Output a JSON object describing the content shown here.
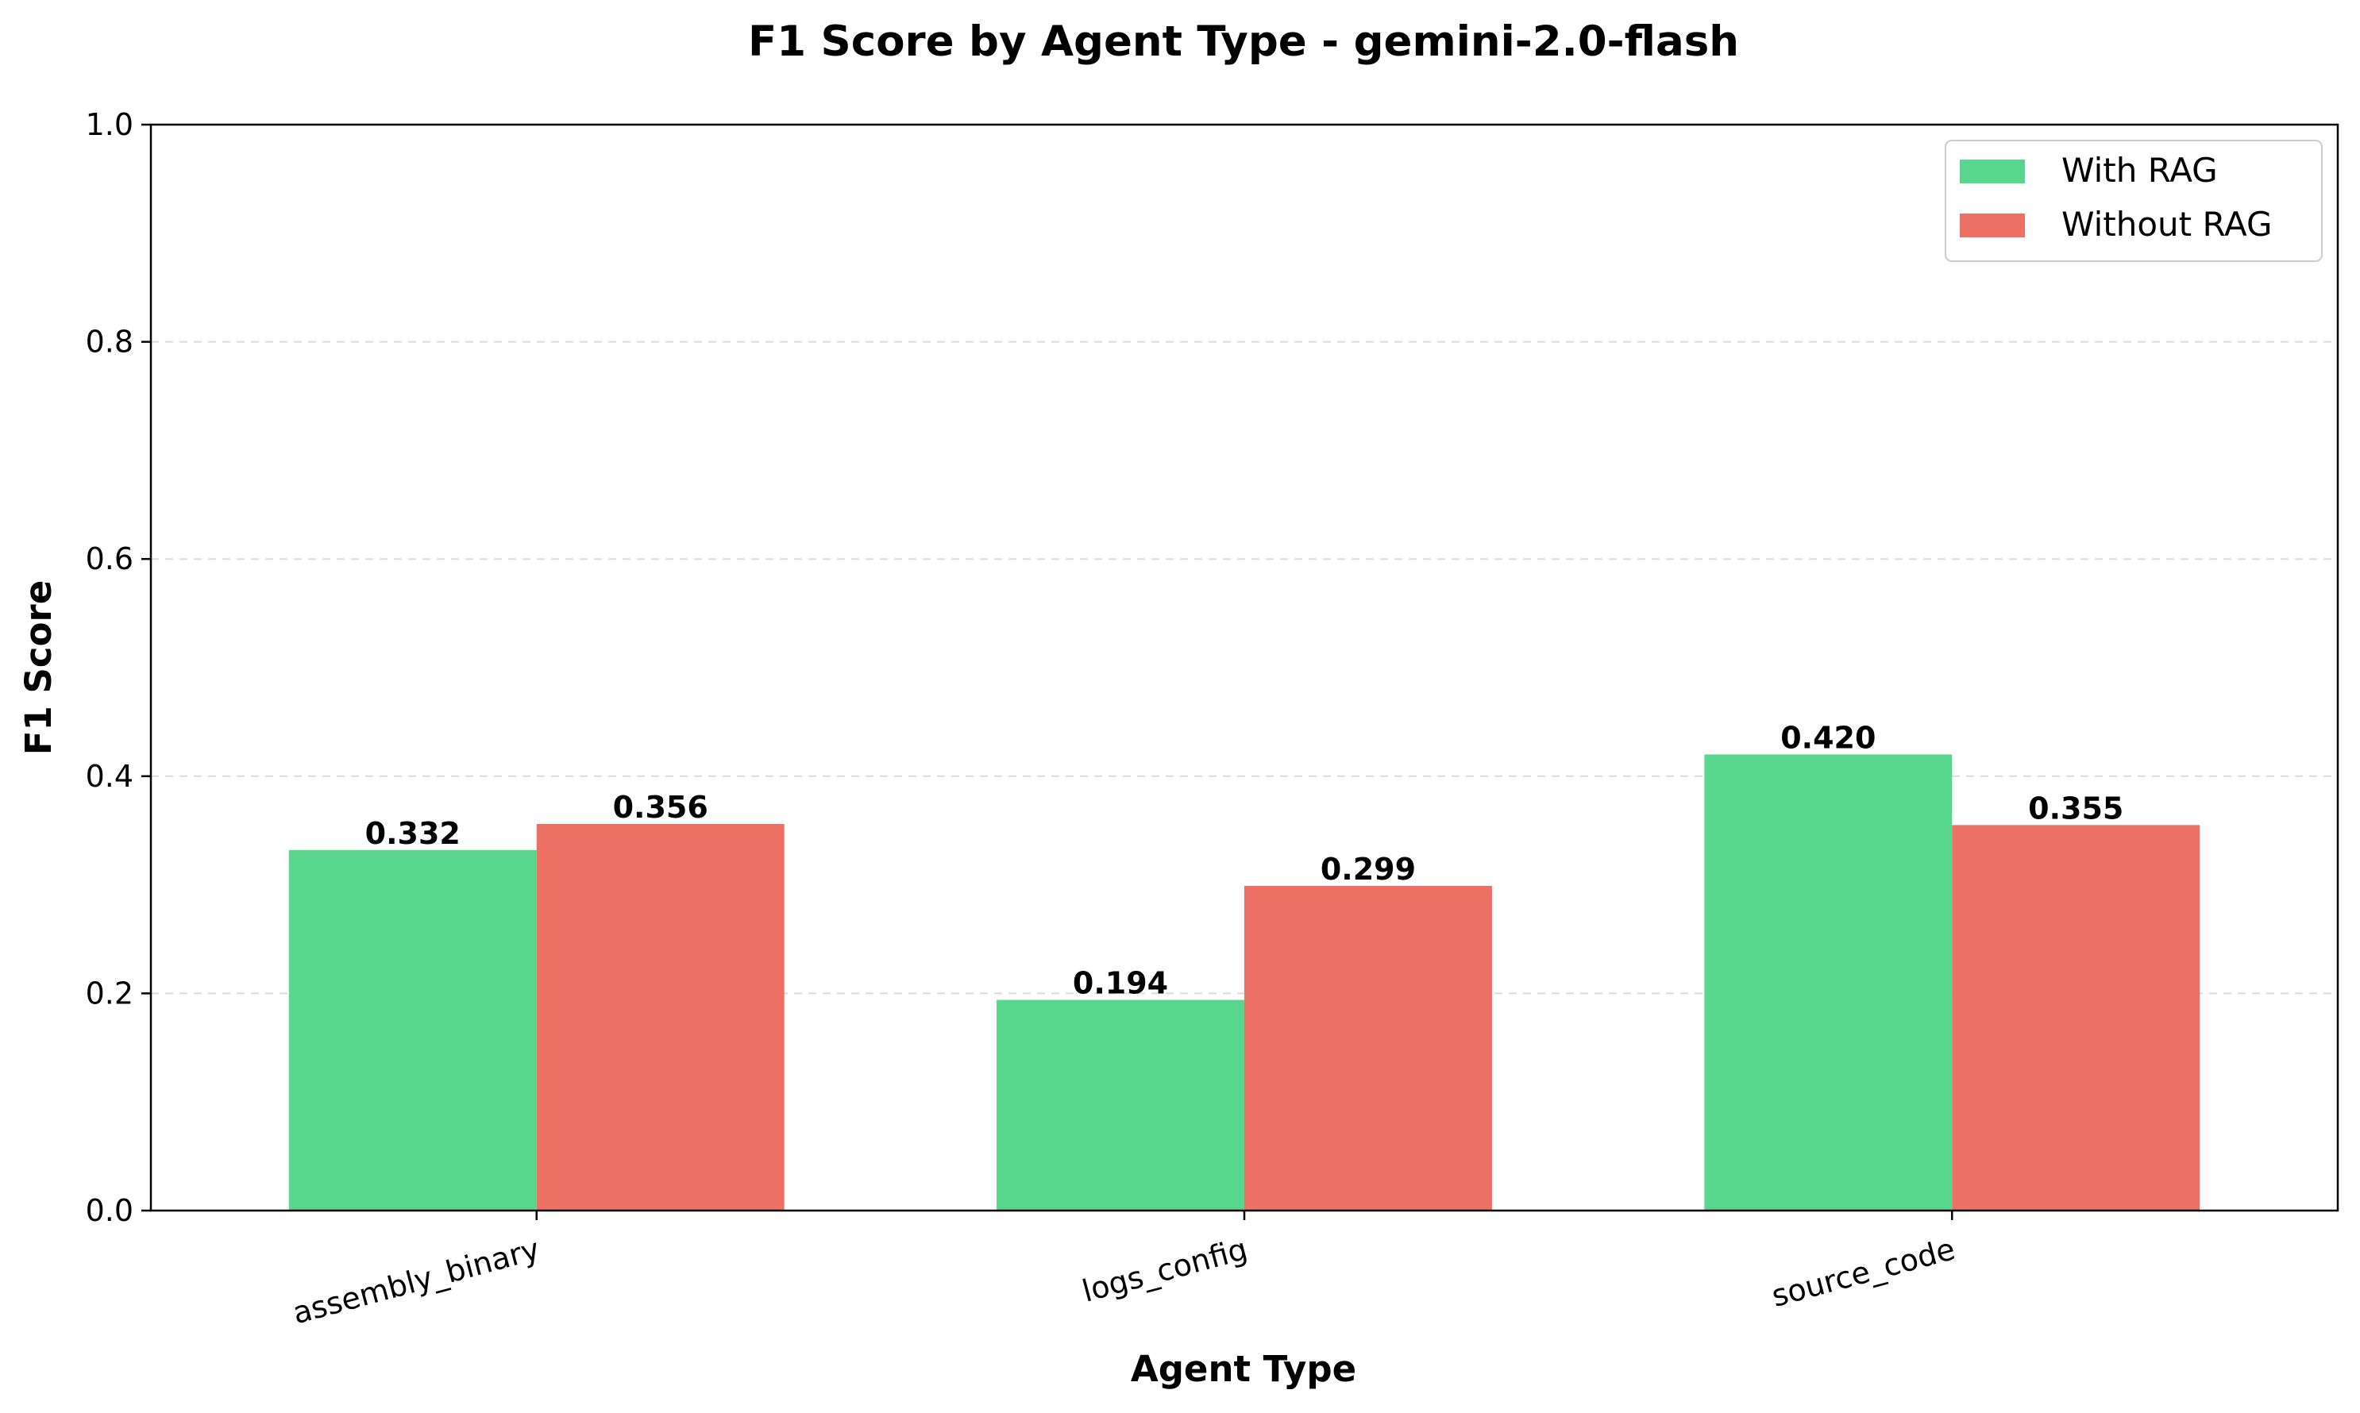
{
  "chart_data": {
    "type": "bar",
    "title": "F1 Score by Agent Type - gemini-2.0-flash",
    "xlabel": "Agent Type",
    "ylabel": "F1 Score",
    "categories": [
      "assembly_binary",
      "logs_config",
      "source_code"
    ],
    "series": [
      {
        "name": "With RAG",
        "values": [
          0.332,
          0.194,
          0.42
        ],
        "labels": [
          "0.332",
          "0.194",
          "0.420"
        ],
        "color": "#58d68d"
      },
      {
        "name": "Without RAG",
        "values": [
          0.356,
          0.299,
          0.355
        ],
        "labels": [
          "0.356",
          "0.299",
          "0.355"
        ],
        "color": "#ec7063"
      }
    ],
    "ylim": [
      0,
      1.0
    ],
    "yticks": [
      {
        "value": 0.0,
        "label": "0.0"
      },
      {
        "value": 0.2,
        "label": "0.2"
      },
      {
        "value": 0.4,
        "label": "0.4"
      },
      {
        "value": 0.6,
        "label": "0.6"
      },
      {
        "value": 0.8,
        "label": "0.8"
      },
      {
        "value": 1.0,
        "label": "1.0"
      }
    ],
    "grid": "y-dashed",
    "legend_position": "top-right"
  }
}
